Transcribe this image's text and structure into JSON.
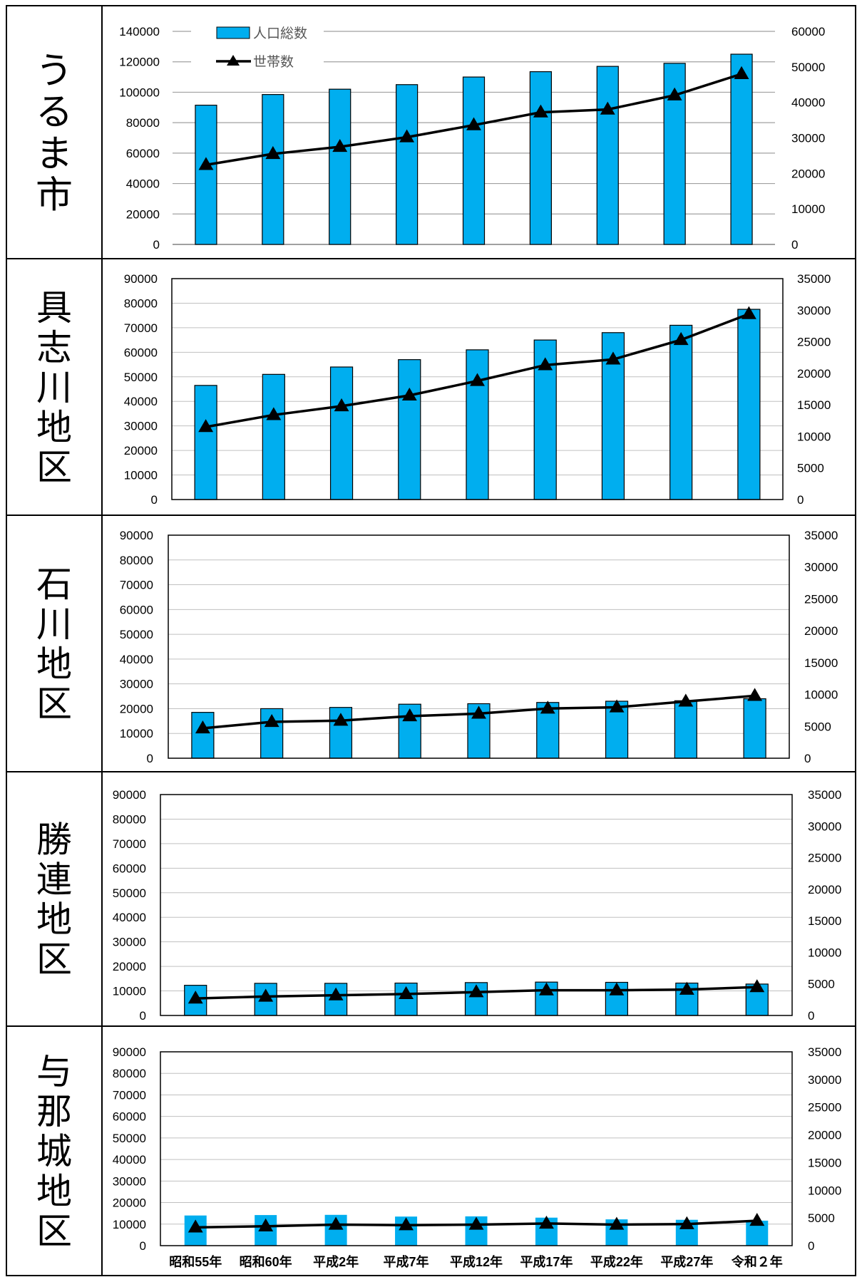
{
  "legend": {
    "population_label": "人口総数",
    "households_label": "世帯数"
  },
  "categories": [
    "昭和55年",
    "昭和60年",
    "平成2年",
    "平成7年",
    "平成12年",
    "平成17年",
    "平成22年",
    "平成27年",
    "令和２年"
  ],
  "colors": {
    "bar": "#00aeef",
    "line": "#000000",
    "grid": "#c0c0c0",
    "border": "#000000"
  },
  "chart_data": [
    {
      "type": "bar",
      "title": "うるま市",
      "ylim": [
        0,
        140000
      ],
      "y_ticks": [
        0,
        20000,
        40000,
        60000,
        80000,
        100000,
        120000,
        140000
      ],
      "y2lim": [
        0,
        60000
      ],
      "y2_ticks": [
        0,
        10000,
        20000,
        30000,
        40000,
        50000,
        60000
      ],
      "series": [
        {
          "name": "人口総数",
          "axis": "left",
          "values": [
            91500,
            98500,
            102000,
            105000,
            110000,
            113500,
            117000,
            119000,
            125000
          ]
        },
        {
          "name": "世帯数",
          "axis": "right",
          "values": [
            22400,
            25500,
            27500,
            30200,
            33600,
            37200,
            38000,
            42000,
            48000
          ]
        }
      ]
    },
    {
      "type": "bar",
      "title": "具志川地区",
      "ylim": [
        0,
        90000
      ],
      "y_ticks": [
        0,
        10000,
        20000,
        30000,
        40000,
        50000,
        60000,
        70000,
        80000,
        90000
      ],
      "y2lim": [
        0,
        35000
      ],
      "y2_ticks": [
        0,
        5000,
        10000,
        15000,
        20000,
        25000,
        30000,
        35000
      ],
      "series": [
        {
          "name": "人口総数",
          "axis": "left",
          "values": [
            46500,
            51000,
            54000,
            57000,
            61000,
            65000,
            68000,
            71000,
            77500
          ]
        },
        {
          "name": "世帯数",
          "axis": "right",
          "values": [
            11500,
            13400,
            14800,
            16500,
            18800,
            21300,
            22200,
            25300,
            29400
          ]
        }
      ]
    },
    {
      "type": "bar",
      "title": "石川地区",
      "ylim": [
        0,
        90000
      ],
      "y_ticks": [
        0,
        10000,
        20000,
        30000,
        40000,
        50000,
        60000,
        70000,
        80000,
        90000
      ],
      "y2lim": [
        0,
        35000
      ],
      "y2_ticks": [
        0,
        5000,
        10000,
        15000,
        20000,
        25000,
        30000,
        35000
      ],
      "series": [
        {
          "name": "人口総数",
          "axis": "left",
          "values": [
            18500,
            20000,
            20500,
            21800,
            22000,
            22500,
            23000,
            23200,
            24000
          ]
        },
        {
          "name": "世帯数",
          "axis": "right",
          "values": [
            4700,
            5700,
            5900,
            6600,
            7000,
            7800,
            8000,
            8900,
            9800
          ]
        }
      ]
    },
    {
      "type": "bar",
      "title": "勝連地区",
      "ylim": [
        0,
        90000
      ],
      "y_ticks": [
        0,
        10000,
        20000,
        30000,
        40000,
        50000,
        60000,
        70000,
        80000,
        90000
      ],
      "y2lim": [
        0,
        35000
      ],
      "y2_ticks": [
        0,
        5000,
        10000,
        15000,
        20000,
        25000,
        30000,
        35000
      ],
      "series": [
        {
          "name": "人口総数",
          "axis": "left",
          "values": [
            12300,
            13100,
            13100,
            13200,
            13400,
            13600,
            13500,
            13200,
            12800
          ]
        },
        {
          "name": "世帯数",
          "axis": "right",
          "values": [
            2700,
            3000,
            3200,
            3400,
            3700,
            4000,
            4000,
            4100,
            4500
          ]
        }
      ]
    },
    {
      "type": "bar",
      "title": "与那城地区",
      "ylim": [
        0,
        90000
      ],
      "y_ticks": [
        0,
        10000,
        20000,
        30000,
        40000,
        50000,
        60000,
        70000,
        80000,
        90000
      ],
      "y2lim": [
        0,
        35000
      ],
      "y2_ticks": [
        0,
        5000,
        10000,
        15000,
        20000,
        25000,
        30000,
        35000
      ],
      "series": [
        {
          "name": "人口総数",
          "axis": "left",
          "values": [
            14000,
            14200,
            14300,
            13500,
            13600,
            13000,
            12200,
            12000,
            11600
          ]
        },
        {
          "name": "世帯数",
          "axis": "right",
          "values": [
            3300,
            3500,
            3800,
            3700,
            3800,
            4000,
            3800,
            3900,
            4500
          ]
        }
      ]
    }
  ]
}
